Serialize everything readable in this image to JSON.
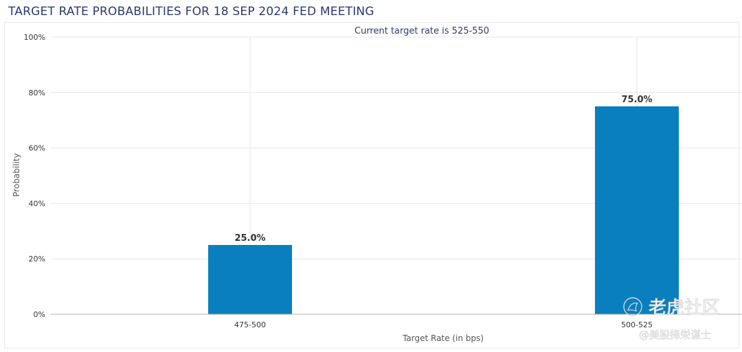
{
  "chart_data": {
    "type": "bar",
    "title": "TARGET RATE PROBABILITIES FOR 18 SEP 2024 FED MEETING",
    "subtitle": "Current target rate is 525-550",
    "xlabel": "Target Rate (in bps)",
    "ylabel": "Probability",
    "categories": [
      "475-500",
      "500-525"
    ],
    "values": [
      25.0,
      75.0
    ],
    "data_labels": [
      "25.0%",
      "75.0%"
    ],
    "ylim": [
      0,
      100
    ],
    "yticks": [
      0,
      20,
      40,
      60,
      80,
      100
    ],
    "ytick_labels": [
      "0%",
      "20%",
      "40%",
      "60%",
      "80%",
      "100%"
    ],
    "grid": true,
    "bar_color": "#0a7fc0"
  },
  "watermark": {
    "brand": "老虎社区",
    "handle": "@美股择栄谋士",
    "icon": "tiger-logo-icon"
  }
}
